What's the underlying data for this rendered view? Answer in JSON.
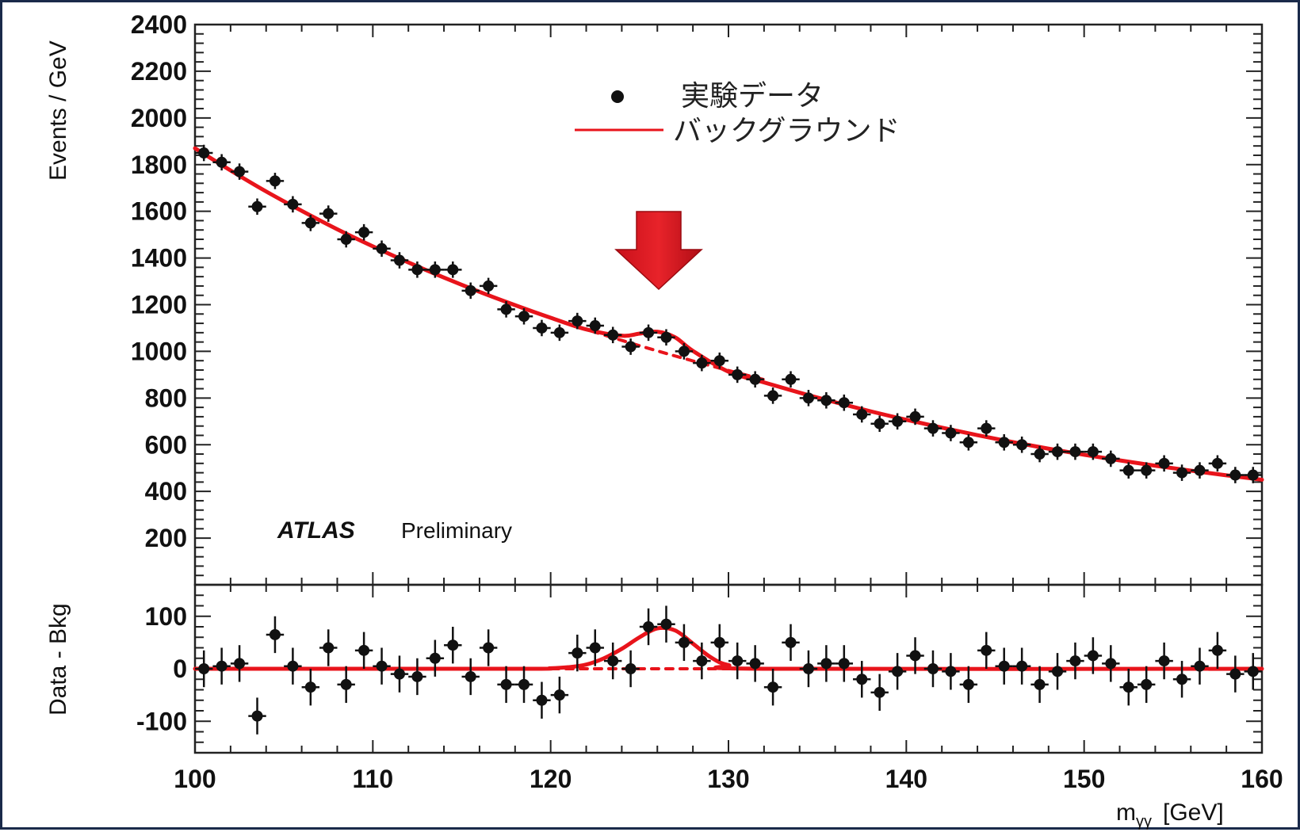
{
  "chart_data": [
    {
      "type": "scatter",
      "panel": "main",
      "ylabel": "Events / GeV",
      "xlim": [
        100,
        160
      ],
      "ylim": [
        0,
        2400
      ],
      "yticks": [
        200,
        400,
        600,
        800,
        1000,
        1200,
        1400,
        1600,
        1800,
        2000,
        2200,
        2400
      ],
      "experiment_label": "ATLAS",
      "experiment_status": "Preliminary",
      "legend": [
        {
          "label": "実験データ",
          "marker": "point"
        },
        {
          "label": "バックグラウンド",
          "marker": "line",
          "color": "#e8141b"
        }
      ],
      "annotation": "red-down-arrow",
      "series": [
        {
          "name": "実験データ",
          "x": [
            100.5,
            101.5,
            102.5,
            103.5,
            104.5,
            105.5,
            106.5,
            107.5,
            108.5,
            109.5,
            110.5,
            111.5,
            112.5,
            113.5,
            114.5,
            115.5,
            116.5,
            117.5,
            118.5,
            119.5,
            120.5,
            121.5,
            122.5,
            123.5,
            124.5,
            125.5,
            126.5,
            127.5,
            128.5,
            129.5,
            130.5,
            131.5,
            132.5,
            133.5,
            134.5,
            135.5,
            136.5,
            137.5,
            138.5,
            139.5,
            140.5,
            141.5,
            142.5,
            143.5,
            144.5,
            145.5,
            146.5,
            147.5,
            148.5,
            149.5,
            150.5,
            151.5,
            152.5,
            153.5,
            154.5,
            155.5,
            156.5,
            157.5,
            158.5,
            159.5
          ],
          "y": [
            1850,
            1810,
            1770,
            1620,
            1730,
            1630,
            1550,
            1590,
            1480,
            1510,
            1440,
            1390,
            1350,
            1350,
            1350,
            1260,
            1280,
            1180,
            1150,
            1100,
            1080,
            1130,
            1110,
            1070,
            1020,
            1080,
            1060,
            1000,
            950,
            960,
            900,
            880,
            810,
            880,
            800,
            790,
            780,
            730,
            690,
            700,
            720,
            670,
            650,
            610,
            670,
            610,
            600,
            560,
            570,
            570,
            570,
            540,
            490,
            490,
            520,
            480,
            490,
            520,
            470,
            470
          ],
          "yerr": 35
        },
        {
          "name": "バックグラウンド",
          "style": "solid",
          "color": "#e8141b",
          "description": "background + signal fit",
          "x": [
            100,
            102,
            104,
            106,
            108,
            110,
            112,
            114,
            116,
            118,
            120,
            122,
            124,
            125,
            126,
            127,
            128,
            130,
            132,
            134,
            136,
            138,
            140,
            142,
            144,
            146,
            148,
            150,
            152,
            154,
            156,
            158,
            160
          ],
          "y": [
            1870,
            1775,
            1685,
            1602,
            1523,
            1450,
            1381,
            1316,
            1255,
            1198,
            1144,
            1094,
            1067,
            1076,
            1084,
            1060,
            1002,
            913,
            867,
            823,
            782,
            743,
            707,
            673,
            641,
            611,
            583,
            557,
            533,
            510,
            489,
            469,
            450
          ]
        },
        {
          "name": "background-only",
          "style": "dashed",
          "color": "#e8141b",
          "x": [
            120,
            122,
            124,
            126,
            128,
            130,
            132
          ],
          "y": [
            1144,
            1094,
            1047,
            1002,
            959,
            918,
            879
          ]
        }
      ]
    },
    {
      "type": "scatter",
      "panel": "ratio",
      "ylabel": "Data - Bkg",
      "xlabel": "m",
      "xlabel_sub": "γγ",
      "xlabel_unit": "[GeV]",
      "xlim": [
        100,
        160
      ],
      "ylim": [
        -160,
        160
      ],
      "yticks": [
        -100,
        0,
        100
      ],
      "xticks": [
        100,
        110,
        120,
        130,
        140,
        150,
        160
      ],
      "series": [
        {
          "name": "Data - Bkg",
          "x": [
            100.5,
            101.5,
            102.5,
            103.5,
            104.5,
            105.5,
            106.5,
            107.5,
            108.5,
            109.5,
            110.5,
            111.5,
            112.5,
            113.5,
            114.5,
            115.5,
            116.5,
            117.5,
            118.5,
            119.5,
            120.5,
            121.5,
            122.5,
            123.5,
            124.5,
            125.5,
            126.5,
            127.5,
            128.5,
            129.5,
            130.5,
            131.5,
            132.5,
            133.5,
            134.5,
            135.5,
            136.5,
            137.5,
            138.5,
            139.5,
            140.5,
            141.5,
            142.5,
            143.5,
            144.5,
            145.5,
            146.5,
            147.5,
            148.5,
            149.5,
            150.5,
            151.5,
            152.5,
            153.5,
            154.5,
            155.5,
            156.5,
            157.5,
            158.5,
            159.5
          ],
          "y": [
            0,
            5,
            10,
            -90,
            65,
            5,
            -35,
            40,
            -30,
            35,
            5,
            -10,
            -15,
            20,
            45,
            -15,
            40,
            -30,
            -30,
            -60,
            -50,
            30,
            40,
            15,
            0,
            80,
            85,
            50,
            15,
            50,
            15,
            10,
            -35,
            50,
            0,
            10,
            10,
            -20,
            -45,
            -5,
            25,
            0,
            -5,
            -30,
            35,
            5,
            5,
            -30,
            -5,
            15,
            25,
            10,
            -35,
            -30,
            15,
            -20,
            5,
            35,
            -10,
            -5
          ],
          "yerr": 35
        },
        {
          "name": "signal fit",
          "style": "solid",
          "color": "#e8141b",
          "x": [
            100,
            118,
            120,
            121,
            122,
            123,
            124,
            125,
            126,
            127,
            128,
            129,
            130,
            132,
            160
          ],
          "y": [
            0,
            0,
            1,
            3,
            8,
            20,
            38,
            60,
            77,
            73,
            48,
            22,
            7,
            0,
            0
          ]
        },
        {
          "name": "zero-line",
          "style": "dashed",
          "color": "#e8141b",
          "x": [
            100,
            160
          ],
          "y": [
            0,
            0
          ]
        }
      ]
    }
  ]
}
